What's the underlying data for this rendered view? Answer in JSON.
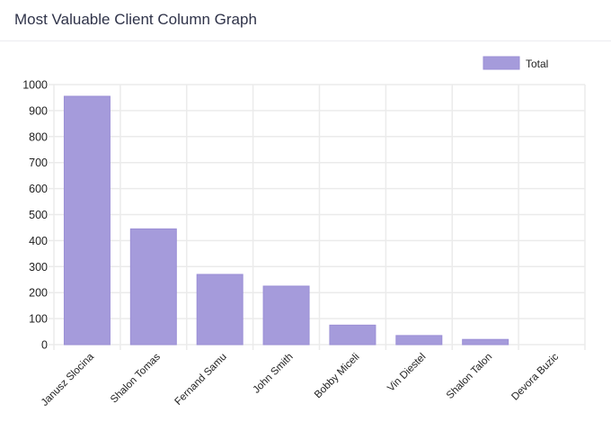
{
  "header": {
    "title": "Most Valuable Client Column Graph"
  },
  "chart_data": {
    "type": "bar",
    "title": "",
    "xlabel": "",
    "ylabel": "",
    "categories": [
      "Janusz Slocina",
      "Shalon Tomas",
      "Fernand Samu",
      "John Smith",
      "Bobby Miceli",
      "Vin Diestel",
      "Shalon Talon",
      "Devora Buzic"
    ],
    "series": [
      {
        "name": "Total",
        "values": [
          955,
          445,
          270,
          225,
          75,
          35,
          20,
          0
        ],
        "color": "#a59bdb"
      }
    ],
    "ylim": [
      0,
      1000
    ],
    "yticks": [
      "0",
      "100",
      "200",
      "300",
      "400",
      "500",
      "600",
      "700",
      "800",
      "900",
      "1000"
    ],
    "grid": true,
    "legend_position": "top-right",
    "colors": {
      "bar_fill": "#a59bdb",
      "bar_stroke": "#9b8fd6",
      "grid": "#ebebeb",
      "axis_text": "#1f1f1f"
    }
  }
}
